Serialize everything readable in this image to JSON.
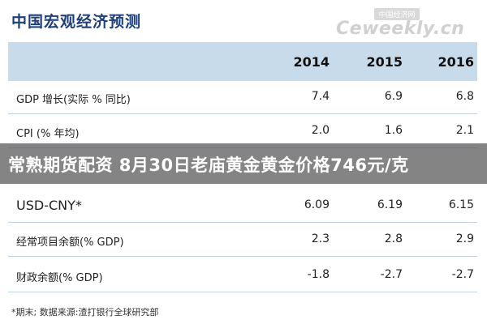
{
  "page": {
    "title": "中国宏观经济预测",
    "watermark_top": "中国经济网",
    "watermark_brand": "Ceweekly.cn"
  },
  "table": {
    "years": [
      "2014",
      "2015",
      "2016"
    ],
    "rows": [
      {
        "label": "GDP 增长(实际 % 同比)",
        "values": [
          "7.4",
          "6.9",
          "6.8"
        ]
      },
      {
        "label": "CPI (% 年均)",
        "values": [
          "2.0",
          "1.6",
          "2.1"
        ]
      },
      {
        "label": "USD-CNY*",
        "values": [
          "6.09",
          "6.19",
          "6.15"
        ]
      },
      {
        "label": "经常项目余额(% GDP)",
        "values": [
          "2.3",
          "2.8",
          "2.9"
        ]
      },
      {
        "label": "财政余额(% GDP)",
        "values": [
          "-1.8",
          "-2.7",
          "-2.7"
        ]
      }
    ]
  },
  "banner": {
    "text": "常熟期货配资 8月30日老庙黄金黄金价格746元/克"
  },
  "footnote": "*期末;   数据来源:渣打银行全球研究部"
}
